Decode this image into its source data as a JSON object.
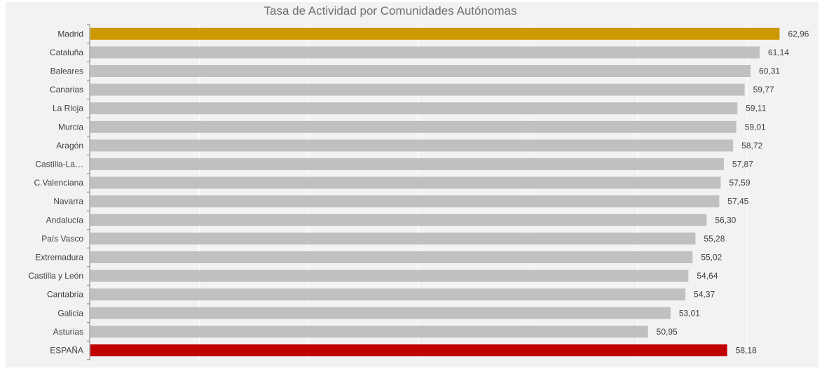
{
  "chart_data": {
    "type": "bar",
    "orientation": "horizontal",
    "title": "Tasa de Actividad por Comunidades Autónomas",
    "xlabel": "",
    "ylabel": "",
    "xlim": [
      0,
      66
    ],
    "grid": true,
    "legend": "none",
    "categories": [
      "Madrid",
      "Cataluña",
      "Baleares",
      "Canarias",
      "La Rioja",
      "Murcia",
      "Aragón",
      "Castilla-La…",
      "C.Valenciana",
      "Navarra",
      "Andalucía",
      "País Vasco",
      "Extremadura",
      "Castilla y León",
      "Cantabria",
      "Galicia",
      "Asturias",
      "ESPAÑA"
    ],
    "values": [
      62.96,
      61.14,
      60.31,
      59.77,
      59.11,
      59.01,
      58.72,
      57.87,
      57.59,
      57.45,
      56.3,
      55.28,
      55.02,
      54.64,
      54.37,
      53.01,
      50.95,
      58.18
    ],
    "value_labels": [
      "62,96",
      "61,14",
      "60,31",
      "59,77",
      "59,11",
      "59,01",
      "58,72",
      "57,87",
      "57,59",
      "57,45",
      "56,30",
      "55,28",
      "55,02",
      "54,64",
      "54,37",
      "53,01",
      "50,95",
      "58,18"
    ],
    "colors": {
      "default": "#c0c0c0",
      "highlight": "#cc9900",
      "total": "#c00000",
      "gridline": "#ffffff",
      "background": "#f2f2f2",
      "axis": "#7f7f7f"
    },
    "highlight_category": "Madrid",
    "total_category": "ESPAÑA"
  }
}
